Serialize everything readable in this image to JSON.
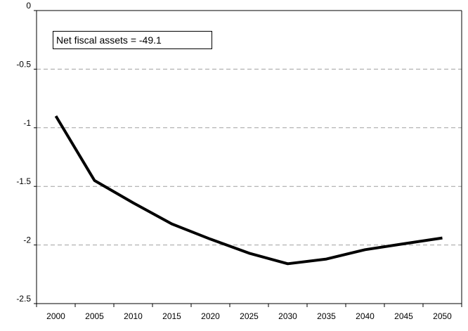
{
  "chart_data": {
    "type": "line",
    "title": "",
    "xlabel": "",
    "ylabel": "",
    "categories": [
      "2000",
      "2005",
      "2010",
      "2015",
      "2020",
      "2025",
      "2030",
      "2035",
      "2040",
      "2045",
      "2050"
    ],
    "series": [
      {
        "values": [
          -0.9,
          -1.45,
          -1.64,
          -1.82,
          -1.95,
          -2.07,
          -2.16,
          -2.12,
          -2.04,
          -1.99,
          -1.94
        ]
      }
    ],
    "ylim": [
      -2.5,
      0
    ],
    "yticks": [
      0,
      -0.5,
      -1,
      -1.5,
      -2,
      -2.5
    ],
    "ytick_labels": [
      "0",
      "-0.5",
      "-1",
      "-1.5",
      "-2",
      "-2.5"
    ],
    "grid": "horizontal dashed",
    "legend": "none",
    "line_color": "#000000",
    "grid_color": "#a0a0a0",
    "annotation": "Net fiscal assets = -49.1"
  }
}
